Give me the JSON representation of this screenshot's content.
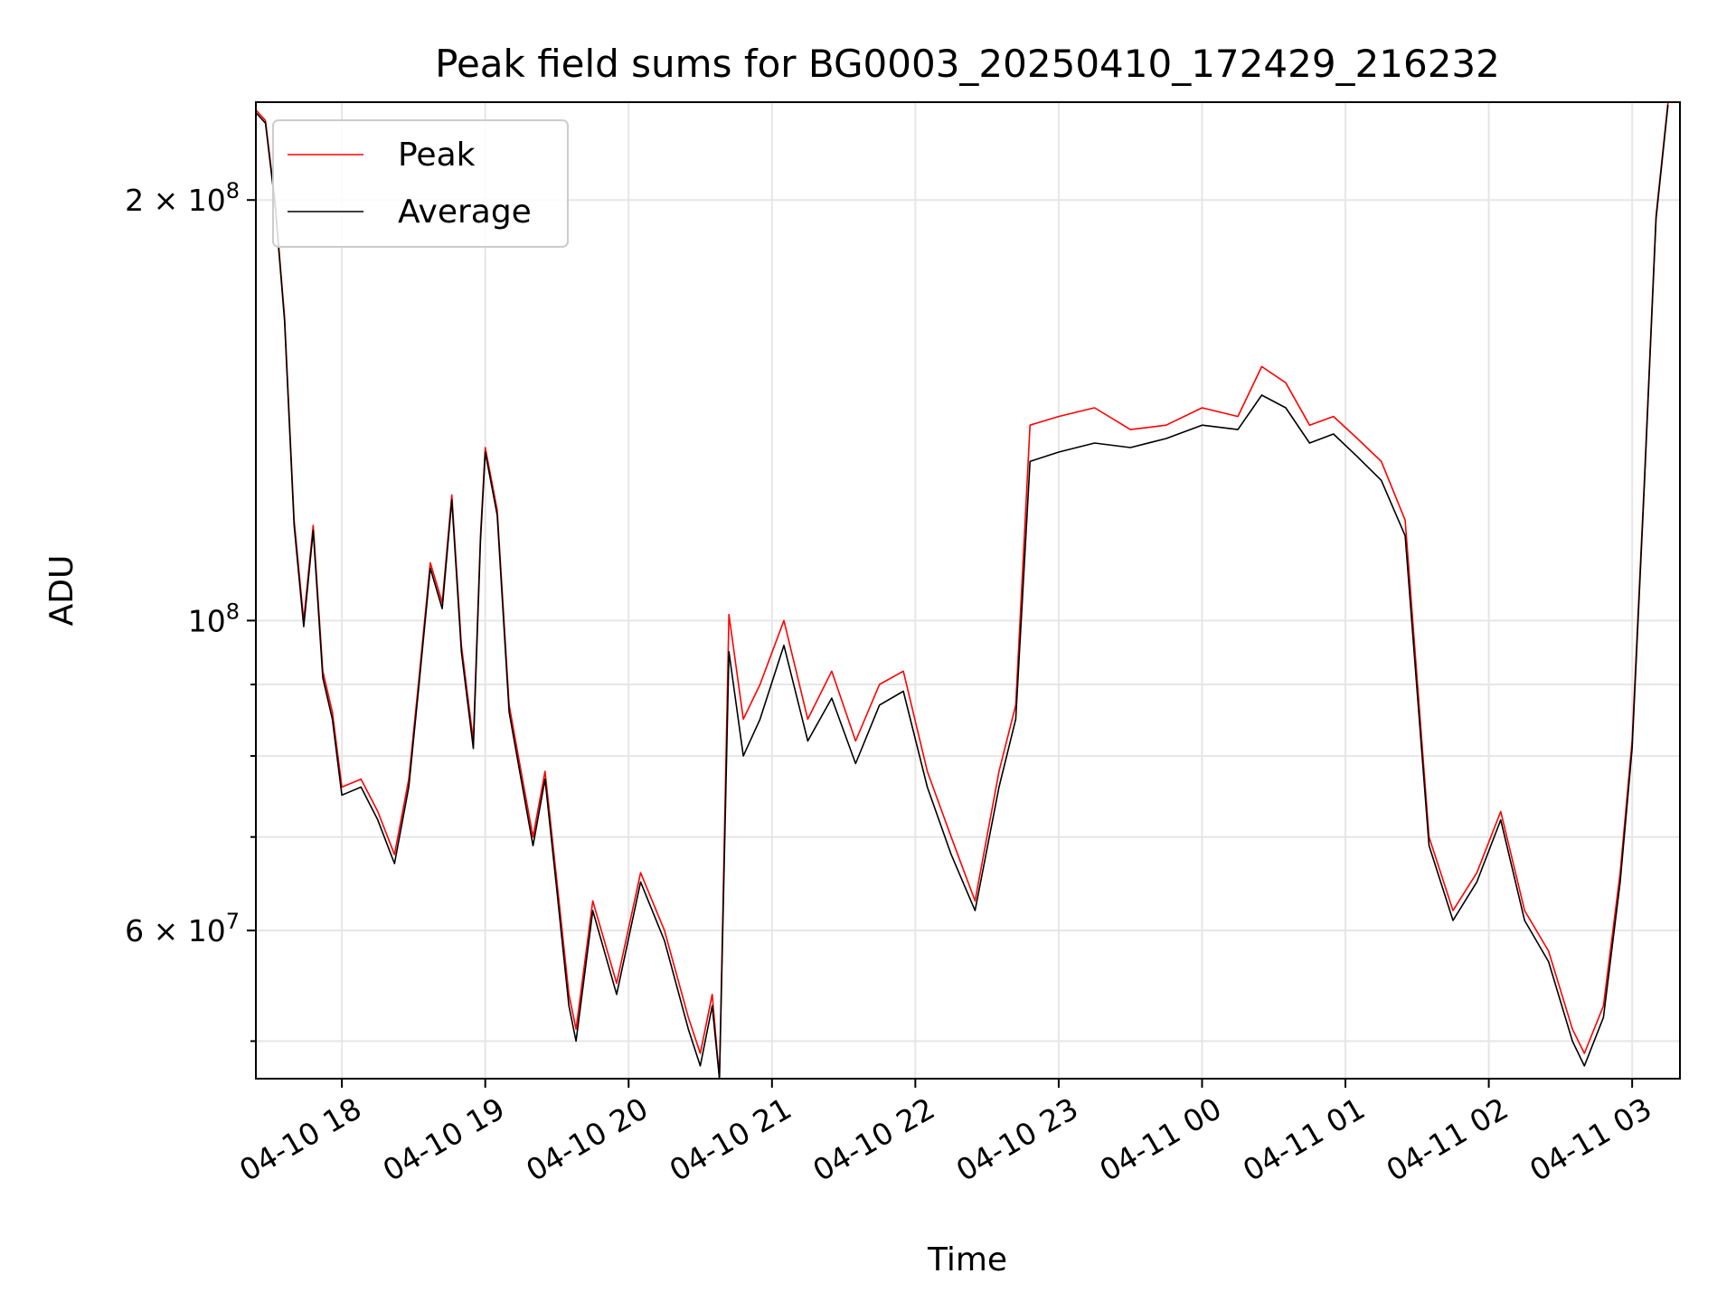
{
  "chart_data": {
    "type": "line",
    "title": "Peak field sums for BG0003_20250410_172429_216232",
    "xlabel": "Time",
    "ylabel": "ADU",
    "yscale": "log",
    "ylim": [
      47000000,
      235000000
    ],
    "xlim": [
      "2025-04-10 17:24",
      "2025-04-11 03:20"
    ],
    "grid": true,
    "legend": "upper left",
    "x_ticks": [
      {
        "label": "04-10 18",
        "value": "2025-04-10 18:00"
      },
      {
        "label": "04-10 19",
        "value": "2025-04-10 19:00"
      },
      {
        "label": "04-10 20",
        "value": "2025-04-10 20:00"
      },
      {
        "label": "04-10 21",
        "value": "2025-04-10 21:00"
      },
      {
        "label": "04-10 22",
        "value": "2025-04-10 22:00"
      },
      {
        "label": "04-10 23",
        "value": "2025-04-10 23:00"
      },
      {
        "label": "04-11 00",
        "value": "2025-04-11 00:00"
      },
      {
        "label": "04-11 01",
        "value": "2025-04-11 01:00"
      },
      {
        "label": "04-11 02",
        "value": "2025-04-11 02:00"
      },
      {
        "label": "04-11 03",
        "value": "2025-04-11 03:00"
      }
    ],
    "y_ticks_major": [
      {
        "value": 60000000,
        "mant": "6",
        "exp": "7"
      },
      {
        "value": 100000000,
        "mant": "",
        "exp": "8"
      },
      {
        "value": 200000000,
        "mant": "2",
        "exp": "8"
      }
    ],
    "y_ticks_minor": [
      50000000,
      70000000,
      80000000,
      90000000
    ],
    "series": [
      {
        "name": "Peak",
        "color": "#ff0000",
        "points": [
          [
            "2025-04-10 17:24",
            232000000
          ],
          [
            "2025-04-10 17:28",
            228000000
          ],
          [
            "2025-04-10 17:32",
            200000000
          ],
          [
            "2025-04-10 17:36",
            165000000
          ],
          [
            "2025-04-10 17:40",
            118000000
          ],
          [
            "2025-04-10 17:44",
            100000000
          ],
          [
            "2025-04-10 17:48",
            117000000
          ],
          [
            "2025-04-10 17:52",
            92000000
          ],
          [
            "2025-04-10 17:56",
            86000000
          ],
          [
            "2025-04-10 18:00",
            76000000
          ],
          [
            "2025-04-10 18:08",
            77000000
          ],
          [
            "2025-04-10 18:15",
            73000000
          ],
          [
            "2025-04-10 18:22",
            68000000
          ],
          [
            "2025-04-10 18:28",
            77000000
          ],
          [
            "2025-04-10 18:32",
            90000000
          ],
          [
            "2025-04-10 18:37",
            110000000
          ],
          [
            "2025-04-10 18:42",
            103000000
          ],
          [
            "2025-04-10 18:46",
            123000000
          ],
          [
            "2025-04-10 18:50",
            96000000
          ],
          [
            "2025-04-10 18:55",
            82000000
          ],
          [
            "2025-04-10 18:58",
            115000000
          ],
          [
            "2025-04-10 19:00",
            133000000
          ],
          [
            "2025-04-10 19:05",
            120000000
          ],
          [
            "2025-04-10 19:10",
            87000000
          ],
          [
            "2025-04-10 19:15",
            78000000
          ],
          [
            "2025-04-10 19:20",
            70000000
          ],
          [
            "2025-04-10 19:25",
            78000000
          ],
          [
            "2025-04-10 19:30",
            65000000
          ],
          [
            "2025-04-10 19:35",
            54000000
          ],
          [
            "2025-04-10 19:38",
            51000000
          ],
          [
            "2025-04-10 19:45",
            63000000
          ],
          [
            "2025-04-10 19:55",
            55000000
          ],
          [
            "2025-04-10 20:05",
            66000000
          ],
          [
            "2025-04-10 20:15",
            60000000
          ],
          [
            "2025-04-10 20:25",
            52000000
          ],
          [
            "2025-04-10 20:30",
            49000000
          ],
          [
            "2025-04-10 20:35",
            54000000
          ],
          [
            "2025-04-10 20:38",
            47000000
          ],
          [
            "2025-04-10 20:42",
            101000000
          ],
          [
            "2025-04-10 20:48",
            85000000
          ],
          [
            "2025-04-10 20:55",
            90000000
          ],
          [
            "2025-04-10 21:05",
            100000000
          ],
          [
            "2025-04-10 21:15",
            85000000
          ],
          [
            "2025-04-10 21:25",
            92000000
          ],
          [
            "2025-04-10 21:35",
            82000000
          ],
          [
            "2025-04-10 21:45",
            90000000
          ],
          [
            "2025-04-10 21:55",
            92000000
          ],
          [
            "2025-04-10 22:05",
            78000000
          ],
          [
            "2025-04-10 22:15",
            70000000
          ],
          [
            "2025-04-10 22:25",
            63000000
          ],
          [
            "2025-04-10 22:35",
            78000000
          ],
          [
            "2025-04-10 22:42",
            87000000
          ],
          [
            "2025-04-10 22:48",
            138000000
          ],
          [
            "2025-04-10 23:00",
            140000000
          ],
          [
            "2025-04-10 23:15",
            142000000
          ],
          [
            "2025-04-10 23:30",
            137000000
          ],
          [
            "2025-04-10 23:45",
            138000000
          ],
          [
            "2025-04-11 00:00",
            142000000
          ],
          [
            "2025-04-11 00:15",
            140000000
          ],
          [
            "2025-04-11 00:25",
            152000000
          ],
          [
            "2025-04-11 00:35",
            148000000
          ],
          [
            "2025-04-11 00:45",
            138000000
          ],
          [
            "2025-04-11 00:55",
            140000000
          ],
          [
            "2025-04-11 01:05",
            135000000
          ],
          [
            "2025-04-11 01:15",
            130000000
          ],
          [
            "2025-04-11 01:25",
            118000000
          ],
          [
            "2025-04-11 01:35",
            70000000
          ],
          [
            "2025-04-11 01:45",
            62000000
          ],
          [
            "2025-04-11 01:55",
            66000000
          ],
          [
            "2025-04-11 02:05",
            73000000
          ],
          [
            "2025-04-11 02:15",
            62000000
          ],
          [
            "2025-04-11 02:25",
            58000000
          ],
          [
            "2025-04-11 02:35",
            51000000
          ],
          [
            "2025-04-11 02:40",
            49000000
          ],
          [
            "2025-04-11 02:48",
            53000000
          ],
          [
            "2025-04-11 02:55",
            66000000
          ],
          [
            "2025-04-11 03:00",
            82000000
          ],
          [
            "2025-04-11 03:05",
            125000000
          ],
          [
            "2025-04-11 03:10",
            195000000
          ],
          [
            "2025-04-11 03:15",
            235000000
          ]
        ]
      },
      {
        "name": "Average",
        "color": "#000000",
        "points": [
          [
            "2025-04-10 17:24",
            231000000
          ],
          [
            "2025-04-10 17:28",
            227000000
          ],
          [
            "2025-04-10 17:32",
            199000000
          ],
          [
            "2025-04-10 17:36",
            164000000
          ],
          [
            "2025-04-10 17:40",
            117000000
          ],
          [
            "2025-04-10 17:44",
            99000000
          ],
          [
            "2025-04-10 17:48",
            116000000
          ],
          [
            "2025-04-10 17:52",
            91000000
          ],
          [
            "2025-04-10 17:56",
            85000000
          ],
          [
            "2025-04-10 18:00",
            75000000
          ],
          [
            "2025-04-10 18:08",
            76000000
          ],
          [
            "2025-04-10 18:15",
            72000000
          ],
          [
            "2025-04-10 18:22",
            67000000
          ],
          [
            "2025-04-10 18:28",
            76000000
          ],
          [
            "2025-04-10 18:32",
            89000000
          ],
          [
            "2025-04-10 18:37",
            109000000
          ],
          [
            "2025-04-10 18:42",
            102000000
          ],
          [
            "2025-04-10 18:46",
            122000000
          ],
          [
            "2025-04-10 18:50",
            95000000
          ],
          [
            "2025-04-10 18:55",
            81000000
          ],
          [
            "2025-04-10 18:58",
            114000000
          ],
          [
            "2025-04-10 19:00",
            132000000
          ],
          [
            "2025-04-10 19:05",
            119000000
          ],
          [
            "2025-04-10 19:10",
            86000000
          ],
          [
            "2025-04-10 19:15",
            77000000
          ],
          [
            "2025-04-10 19:20",
            69000000
          ],
          [
            "2025-04-10 19:25",
            77000000
          ],
          [
            "2025-04-10 19:30",
            64000000
          ],
          [
            "2025-04-10 19:35",
            53000000
          ],
          [
            "2025-04-10 19:38",
            50000000
          ],
          [
            "2025-04-10 19:45",
            62000000
          ],
          [
            "2025-04-10 19:55",
            54000000
          ],
          [
            "2025-04-10 20:05",
            65000000
          ],
          [
            "2025-04-10 20:15",
            59000000
          ],
          [
            "2025-04-10 20:25",
            51000000
          ],
          [
            "2025-04-10 20:30",
            48000000
          ],
          [
            "2025-04-10 20:35",
            53000000
          ],
          [
            "2025-04-10 20:38",
            47000000
          ],
          [
            "2025-04-10 20:42",
            95000000
          ],
          [
            "2025-04-10 20:48",
            80000000
          ],
          [
            "2025-04-10 20:55",
            85000000
          ],
          [
            "2025-04-10 21:05",
            96000000
          ],
          [
            "2025-04-10 21:15",
            82000000
          ],
          [
            "2025-04-10 21:25",
            88000000
          ],
          [
            "2025-04-10 21:35",
            79000000
          ],
          [
            "2025-04-10 21:45",
            87000000
          ],
          [
            "2025-04-10 21:55",
            89000000
          ],
          [
            "2025-04-10 22:05",
            76000000
          ],
          [
            "2025-04-10 22:15",
            68000000
          ],
          [
            "2025-04-10 22:25",
            62000000
          ],
          [
            "2025-04-10 22:35",
            76000000
          ],
          [
            "2025-04-10 22:42",
            85000000
          ],
          [
            "2025-04-10 22:48",
            130000000
          ],
          [
            "2025-04-10 23:00",
            132000000
          ],
          [
            "2025-04-10 23:15",
            134000000
          ],
          [
            "2025-04-10 23:30",
            133000000
          ],
          [
            "2025-04-10 23:45",
            135000000
          ],
          [
            "2025-04-11 00:00",
            138000000
          ],
          [
            "2025-04-11 00:15",
            137000000
          ],
          [
            "2025-04-11 00:25",
            145000000
          ],
          [
            "2025-04-11 00:35",
            142000000
          ],
          [
            "2025-04-11 00:45",
            134000000
          ],
          [
            "2025-04-11 00:55",
            136000000
          ],
          [
            "2025-04-11 01:05",
            131000000
          ],
          [
            "2025-04-11 01:15",
            126000000
          ],
          [
            "2025-04-11 01:25",
            115000000
          ],
          [
            "2025-04-11 01:35",
            69000000
          ],
          [
            "2025-04-11 01:45",
            61000000
          ],
          [
            "2025-04-11 01:55",
            65000000
          ],
          [
            "2025-04-11 02:05",
            72000000
          ],
          [
            "2025-04-11 02:15",
            61000000
          ],
          [
            "2025-04-11 02:25",
            57000000
          ],
          [
            "2025-04-11 02:35",
            50000000
          ],
          [
            "2025-04-11 02:40",
            48000000
          ],
          [
            "2025-04-11 02:48",
            52000000
          ],
          [
            "2025-04-11 02:55",
            65000000
          ],
          [
            "2025-04-11 03:00",
            81000000
          ],
          [
            "2025-04-11 03:05",
            124000000
          ],
          [
            "2025-04-11 03:10",
            194000000
          ],
          [
            "2025-04-11 03:15",
            234000000
          ]
        ]
      }
    ]
  }
}
